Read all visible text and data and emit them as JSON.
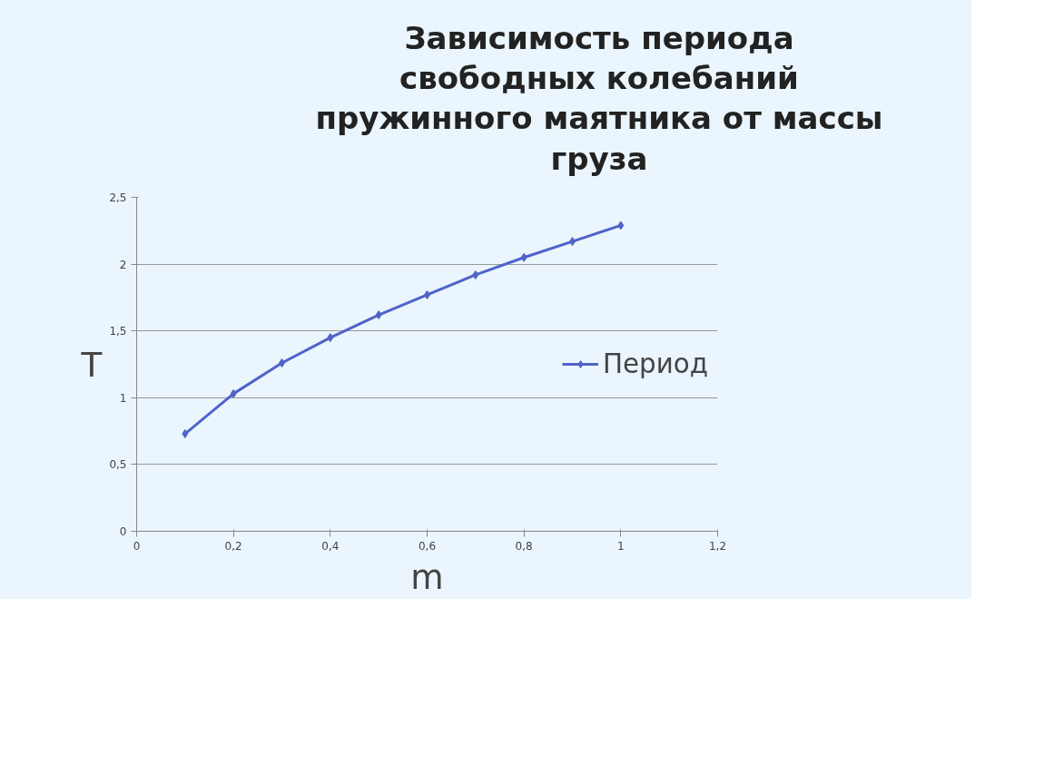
{
  "chart_data": {
    "type": "line",
    "title": "Зависимость периода свободных колебаний пружинного маятника от массы груза",
    "xlabel": "m",
    "ylabel": "T",
    "x": [
      0.1,
      0.2,
      0.3,
      0.4,
      0.5,
      0.6,
      0.7,
      0.8,
      0.9,
      1.0
    ],
    "series": [
      {
        "name": "Период",
        "color": "#4f63c8",
        "values": [
          0.73,
          1.03,
          1.26,
          1.45,
          1.62,
          1.77,
          1.92,
          2.05,
          2.17,
          2.29
        ]
      }
    ],
    "xlim": [
      0,
      1.2
    ],
    "xticks": [
      0,
      {
        "value": 0.2,
        "label": "0,2"
      },
      {
        "value": 0.4,
        "label": "0,4"
      },
      {
        "value": 0.6,
        "label": "0,6"
      },
      {
        "value": 0.8,
        "label": "0,8"
      },
      1,
      {
        "value": 1.2,
        "label": "1,2"
      }
    ],
    "ylim": [
      0,
      2.5
    ],
    "yticks": [
      0,
      {
        "value": 0.5,
        "label": "0,5"
      },
      1,
      {
        "value": 1.5,
        "label": "1,5"
      },
      2,
      {
        "value": 2.5,
        "label": "2,5"
      }
    ],
    "grid": "y",
    "legend": "right",
    "marker": "diamond",
    "line_style": "solid"
  }
}
